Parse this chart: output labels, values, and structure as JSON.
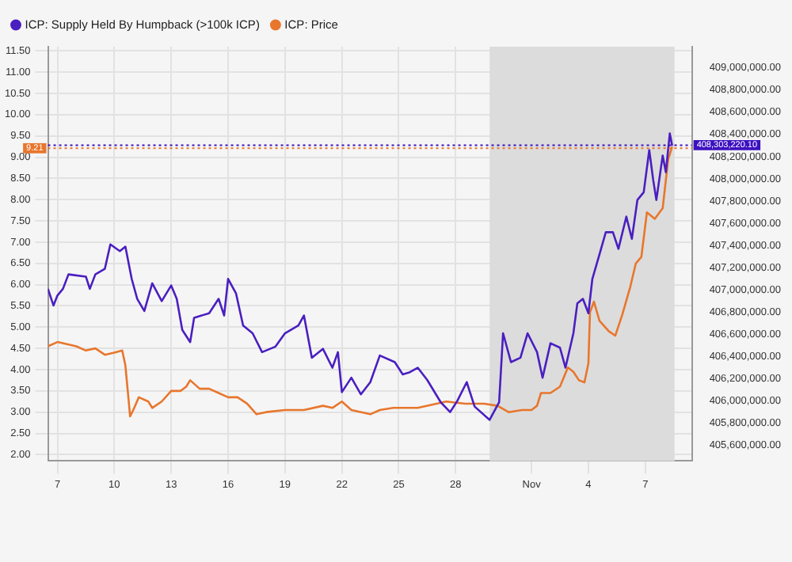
{
  "chart_data": {
    "type": "line",
    "legend": "top left",
    "grid": true,
    "marker": "none",
    "line_style": "solid",
    "xlim": [
      "--10-06T12:00",
      "--11-09T11:00"
    ],
    "xticks": [
      {
        "value": "--10-07",
        "label": "7"
      },
      {
        "value": "--10-10",
        "label": "10"
      },
      {
        "value": "--10-13",
        "label": "13"
      },
      {
        "value": "--10-16",
        "label": "16"
      },
      {
        "value": "--10-19",
        "label": "19"
      },
      {
        "value": "--10-22",
        "label": "22"
      },
      {
        "value": "--10-25",
        "label": "25"
      },
      {
        "value": "--10-28",
        "label": "28"
      },
      {
        "value": "--11-01",
        "label": "Nov"
      },
      {
        "value": "--11-04",
        "label": "4"
      },
      {
        "value": "--11-07",
        "label": "7"
      }
    ],
    "ylim": [
      1.85,
      11.6
    ],
    "yticks": [
      {
        "value": 2,
        "label": "2.00"
      },
      {
        "value": 2.5,
        "label": "2.50"
      },
      {
        "value": 3,
        "label": "3.00"
      },
      {
        "value": 3.5,
        "label": "3.50"
      },
      {
        "value": 4,
        "label": "4.00"
      },
      {
        "value": 4.5,
        "label": "4.50"
      },
      {
        "value": 5,
        "label": "5.00"
      },
      {
        "value": 5.5,
        "label": "5.50"
      },
      {
        "value": 6,
        "label": "6.00"
      },
      {
        "value": 6.5,
        "label": "6.50"
      },
      {
        "value": 7,
        "label": "7.00"
      },
      {
        "value": 7.5,
        "label": "7.50"
      },
      {
        "value": 8,
        "label": "8.00"
      },
      {
        "value": 8.5,
        "label": "8.50"
      },
      {
        "value": 9,
        "label": "9.00"
      },
      {
        "value": 9.5,
        "label": "9.50"
      },
      {
        "value": 10,
        "label": "10.00"
      },
      {
        "value": 10.5,
        "label": "10.50"
      },
      {
        "value": 11,
        "label": "11.00"
      },
      {
        "value": 11.5,
        "label": "11.50"
      }
    ],
    "y2lim": [
      405460000,
      409190000
    ],
    "y2ticks": [
      {
        "value": 405600000,
        "label": "405,600,000.00"
      },
      {
        "value": 405800000,
        "label": "405,800,000.00"
      },
      {
        "value": 406000000,
        "label": "406,000,000.00"
      },
      {
        "value": 406200000,
        "label": "406,200,000.00"
      },
      {
        "value": 406400000,
        "label": "406,400,000.00"
      },
      {
        "value": 406600000,
        "label": "406,600,000.00"
      },
      {
        "value": 406800000,
        "label": "406,800,000.00"
      },
      {
        "value": 407000000,
        "label": "407,000,000.00"
      },
      {
        "value": 407200000,
        "label": "407,200,000.00"
      },
      {
        "value": 407400000,
        "label": "407,400,000.00"
      },
      {
        "value": 407600000,
        "label": "407,600,000.00"
      },
      {
        "value": 407800000,
        "label": "407,800,000.00"
      },
      {
        "value": 408000000,
        "label": "408,000,000.00"
      },
      {
        "value": 408200000,
        "label": "408,200,000.00"
      },
      {
        "value": 408400000,
        "label": "408,400,000.00"
      },
      {
        "value": 408600000,
        "label": "408,600,000.00"
      },
      {
        "value": 408800000,
        "label": "408,800,000.00"
      },
      {
        "value": 409000000,
        "label": "409,000,000.00"
      }
    ],
    "bands": [
      {
        "axis": "x",
        "from": "--10-29T19:00",
        "to": "--11-08T13:00",
        "color": "#dcdcdc"
      }
    ],
    "ref_lines": [
      {
        "axis": "y",
        "value": 9.21,
        "label": "9.21",
        "color": "#e8762c",
        "line_style": "dotted"
      },
      {
        "axis": "y2",
        "value": 408303220.1,
        "label": "408,303,220.10",
        "color": "#3c10c0",
        "line_style": "dotted"
      }
    ],
    "series": [
      {
        "name": "ICP: Supply Held By Humpback (>100k ICP)",
        "color": "#4a1fc0",
        "axis": "y2",
        "x": [
          "--10-06T12:00",
          "--10-06T19:00",
          "--10-07T00:00",
          "--10-07T07:00",
          "--10-07T14:00",
          "--10-08T12:00",
          "--10-08T17:00",
          "--10-09T00:00",
          "--10-09T12:00",
          "--10-09T19:00",
          "--10-10T07:00",
          "--10-10T14:00",
          "--10-10T22:00",
          "--10-11T05:00",
          "--10-11T14:00",
          "--10-12T00:00",
          "--10-12T12:00",
          "--10-13T00:00",
          "--10-13T07:00",
          "--10-13T14:00",
          "--10-14T00:00",
          "--10-14T05:00",
          "--10-15T00:00",
          "--10-15T12:00",
          "--10-15T19:00",
          "--10-16T00:00",
          "--10-16T10:00",
          "--10-16T19:00",
          "--10-17T07:00",
          "--10-17T19:00",
          "--10-18T12:00",
          "--10-19T00:00",
          "--10-19T17:00",
          "--10-20T00:00",
          "--10-20T10:00",
          "--10-21T00:00",
          "--10-21T12:00",
          "--10-21T19:00",
          "--10-22T00:00",
          "--10-22T12:00",
          "--10-23T00:00",
          "--10-23T12:00",
          "--10-24T00:00",
          "--10-24T19:00",
          "--10-25T05:00",
          "--10-25T14:00",
          "--10-26T00:00",
          "--10-26T12:00",
          "--10-27T05:00",
          "--10-27T17:00",
          "--10-28T02:00",
          "--10-28T14:00",
          "--10-29T00:00",
          "--10-29T19:00",
          "--10-30T07:00",
          "--10-30T12:00",
          "--10-30T22:00",
          "--10-31T10:00",
          "--10-31T19:00",
          "--11-01T07:00",
          "--11-01T14:00",
          "--11-02T00:00",
          "--11-02T12:00",
          "--11-02T19:00",
          "--11-03T05:00",
          "--11-03T10:00",
          "--11-03T17:00",
          "--11-04T00:00",
          "--11-04T05:00",
          "--11-04T14:00",
          "--11-04T22:00",
          "--11-05T07:00",
          "--11-05T14:00",
          "--11-06T00:00",
          "--11-06T07:00",
          "--11-06T14:00",
          "--11-06T22:00",
          "--11-07T05:00",
          "--11-07T10:00",
          "--11-07T14:00",
          "--11-07T22:00",
          "--11-08T02:00",
          "--11-08T07:00",
          "--11-08T10:00"
        ],
        "values": [
          407010000,
          406860000,
          406950000,
          407010000,
          407140000,
          407120000,
          407010000,
          407140000,
          407190000,
          407410000,
          407350000,
          407390000,
          407100000,
          406920000,
          406810000,
          407060000,
          406900000,
          407040000,
          406920000,
          406640000,
          406530000,
          406750000,
          406790000,
          406920000,
          406770000,
          407100000,
          406970000,
          406680000,
          406610000,
          406440000,
          406490000,
          406610000,
          406680000,
          406770000,
          406390000,
          406470000,
          406300000,
          406440000,
          406080000,
          406210000,
          406060000,
          406170000,
          406410000,
          406350000,
          406240000,
          406260000,
          406300000,
          406190000,
          405990000,
          405900000,
          406000000,
          406170000,
          405950000,
          405830000,
          405990000,
          406610000,
          406350000,
          406390000,
          406610000,
          406440000,
          406210000,
          406520000,
          406480000,
          406300000,
          406610000,
          406880000,
          406920000,
          406790000,
          407100000,
          407320000,
          407520000,
          407520000,
          407370000,
          407660000,
          407460000,
          407810000,
          407880000,
          408260000,
          407990000,
          407810000,
          408210000,
          408060000,
          408410000,
          408300000
        ]
      },
      {
        "name": "ICP: Price",
        "color": "#e8762c",
        "x": [
          "--10-06T12:00",
          "--10-07T00:00",
          "--10-08T00:00",
          "--10-08T12:00",
          "--10-09T00:00",
          "--10-09T12:00",
          "--10-10T00:00",
          "--10-10T10:00",
          "--10-10T14:00",
          "--10-10T20:00",
          "--10-11T00:00",
          "--10-11T07:00",
          "--10-11T19:00",
          "--10-12T00:00",
          "--10-12T12:00",
          "--10-13T00:00",
          "--10-13T12:00",
          "--10-13T19:00",
          "--10-14T00:00",
          "--10-14T12:00",
          "--10-15T00:00",
          "--10-15T12:00",
          "--10-16T00:00",
          "--10-16T12:00",
          "--10-17T00:00",
          "--10-17T12:00",
          "--10-18T00:00",
          "--10-19T00:00",
          "--10-20T00:00",
          "--10-21T00:00",
          "--10-21T12:00",
          "--10-22T00:00",
          "--10-22T12:00",
          "--10-23T12:00",
          "--10-24T00:00",
          "--10-24T17:00",
          "--10-25T00:00",
          "--10-26T00:00",
          "--10-27T00:00",
          "--10-27T12:00",
          "--10-28T12:00",
          "--10-29T12:00",
          "--10-30T05:00",
          "--10-30T19:00",
          "--10-31T12:00",
          "--11-01T00:00",
          "--11-01T07:00",
          "--11-01T12:00",
          "--11-02T00:00",
          "--11-02T12:00",
          "--11-02T22:00",
          "--11-03T05:00",
          "--11-03T12:00",
          "--11-03T19:00",
          "--11-04T00:00",
          "--11-04T02:00",
          "--11-04T07:00",
          "--11-04T14:00",
          "--11-05T02:00",
          "--11-05T10:00",
          "--11-05T19:00",
          "--11-06T05:00",
          "--11-06T12:00",
          "--11-06T19:00",
          "--11-07T02:00",
          "--11-07T12:00",
          "--11-07T22:00",
          "--11-08T05:00",
          "--11-08T10:00"
        ],
        "values": [
          4.55,
          4.65,
          4.55,
          4.45,
          4.5,
          4.35,
          4.4,
          4.45,
          4.1,
          2.9,
          3.05,
          3.35,
          3.25,
          3.1,
          3.25,
          3.5,
          3.5,
          3.6,
          3.75,
          3.55,
          3.55,
          3.45,
          3.35,
          3.35,
          3.2,
          2.95,
          3.0,
          3.05,
          3.05,
          3.15,
          3.1,
          3.25,
          3.05,
          2.95,
          3.05,
          3.1,
          3.1,
          3.1,
          3.2,
          3.25,
          3.2,
          3.2,
          3.15,
          3.0,
          3.05,
          3.05,
          3.15,
          3.45,
          3.45,
          3.6,
          4.05,
          3.95,
          3.75,
          3.7,
          4.15,
          5.35,
          5.6,
          5.15,
          4.9,
          4.8,
          5.3,
          5.95,
          6.5,
          6.65,
          7.7,
          7.55,
          7.8,
          8.95,
          9.25
        ]
      }
    ]
  }
}
